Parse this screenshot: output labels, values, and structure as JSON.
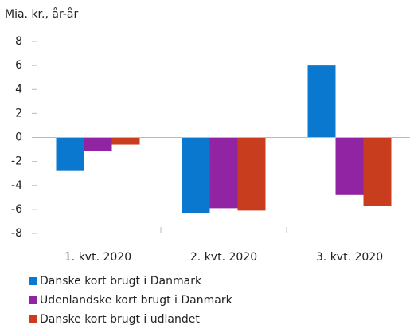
{
  "chart_data": {
    "type": "bar",
    "y_label": "Mia. kr., år-år",
    "categories": [
      "1. kvt. 2020",
      "2. kvt. 2020",
      "3. kvt. 2020"
    ],
    "series": [
      {
        "name": "Danske kort brugt i Danmark",
        "color": "#0b78d0",
        "values": [
          -2.8,
          -6.3,
          6.0
        ]
      },
      {
        "name": "Udenlandske kort brugt i Danmark",
        "color": "#9124a3",
        "values": [
          -1.1,
          -5.9,
          -4.8
        ]
      },
      {
        "name": "Danske kort brugt i udlandet",
        "color": "#c93d1f",
        "values": [
          -0.6,
          -6.1,
          -5.7
        ]
      }
    ],
    "ylim": [
      -8,
      8
    ],
    "yticks": [
      -8,
      -6,
      -4,
      -2,
      0,
      2,
      4,
      6,
      8
    ],
    "grid": false,
    "legend": "bottom"
  }
}
